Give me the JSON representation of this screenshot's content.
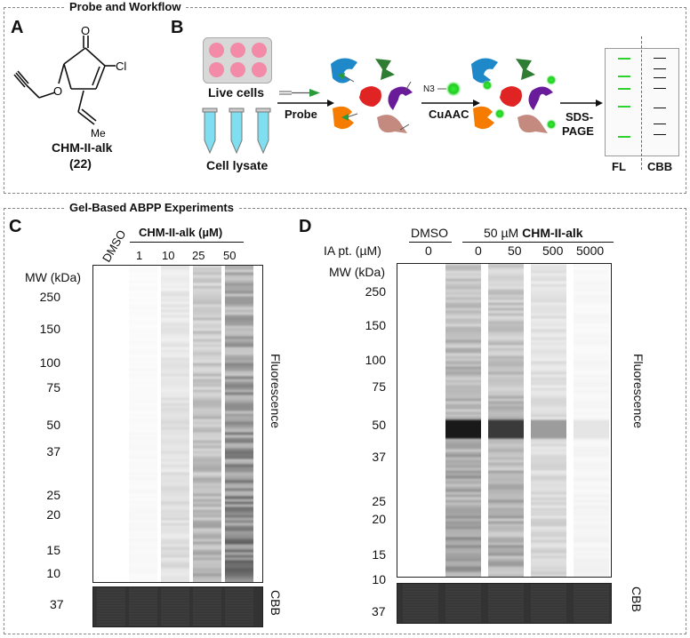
{
  "section_top": {
    "title": "Probe and Workflow"
  },
  "section_bottom": {
    "title": "Gel-Based ABPP Experiments"
  },
  "panelA": {
    "letter": "A",
    "compound_name": "CHM-II-alk",
    "compound_number": "(22)",
    "atom_O_ketone": "O",
    "atom_O_ether": "O",
    "atom_Cl": "Cl",
    "atom_Me": "Me"
  },
  "panelB": {
    "letter": "B",
    "live_cells": "Live cells",
    "cell_lysate": "Cell lysate",
    "probe": "Probe",
    "cuaac": "CuAAC",
    "sds1": "SDS-",
    "sds2": "PAGE",
    "fl": "FL",
    "cbb": "CBB",
    "azide": "N3"
  },
  "panelC": {
    "letter": "C",
    "dmso": "DMSO",
    "header": "CHM-II-alk (µM)",
    "concentrations": [
      "1",
      "10",
      "25",
      "50"
    ],
    "mw_header": "MW (kDa)",
    "mw": [
      "250",
      "150",
      "100",
      "75",
      "50",
      "37",
      "25",
      "20",
      "15",
      "10"
    ],
    "fluorescence": "Fluorescence",
    "cbb": "CBB",
    "cbb_mw": "37",
    "lane_intensity": [
      0.0,
      0.05,
      0.25,
      0.55,
      0.9
    ]
  },
  "panelD": {
    "letter": "D",
    "dmso": "DMSO",
    "header_prefix": "50 µM ",
    "header_bold": "CHM-II-alk",
    "ia_label": "IA pt. (µM)",
    "ia_values": [
      "0",
      "0",
      "50",
      "500",
      "5000"
    ],
    "mw_header": "MW (kDa)",
    "mw": [
      "250",
      "150",
      "100",
      "75",
      "50",
      "37",
      "25",
      "20",
      "15",
      "10"
    ],
    "fluorescence": "Fluorescence",
    "cbb": "CBB",
    "cbb_mw": "37",
    "lane_intensity": [
      0.0,
      0.7,
      0.6,
      0.3,
      0.08
    ]
  }
}
